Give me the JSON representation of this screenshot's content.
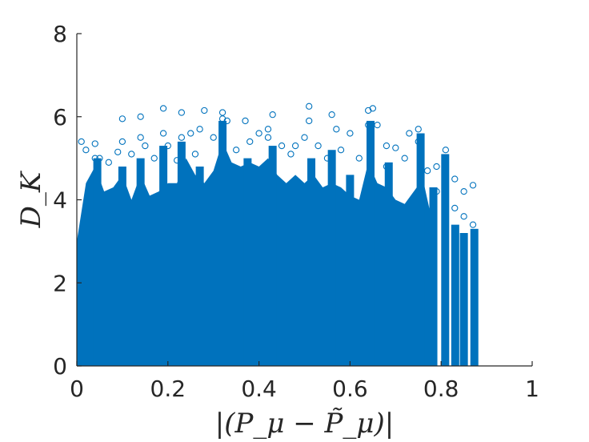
{
  "chart_data": {
    "type": "scatter",
    "marker": "open-circle",
    "series_color": "#0072BD",
    "xlabel": "|(P_μ − P̃_μ)|",
    "ylabel": "D_K",
    "xlim": [
      0,
      1
    ],
    "ylim": [
      0,
      8
    ],
    "xticks": [
      "0",
      "0.2",
      "0.4",
      "0.6",
      "0.8",
      "1"
    ],
    "yticks": [
      "0",
      "2",
      "4",
      "6",
      "8"
    ],
    "grid": false,
    "legend": "none",
    "points": [
      [
        0.01,
        5.4
      ],
      [
        0.02,
        5.2
      ],
      [
        0.04,
        5.35
      ],
      [
        0.05,
        5.0
      ],
      [
        0.07,
        4.9
      ],
      [
        0.09,
        5.15
      ],
      [
        0.1,
        5.95
      ],
      [
        0.12,
        5.1
      ],
      [
        0.14,
        6.0
      ],
      [
        0.15,
        5.3
      ],
      [
        0.17,
        5.0
      ],
      [
        0.19,
        6.2
      ],
      [
        0.2,
        5.3
      ],
      [
        0.22,
        4.95
      ],
      [
        0.23,
        6.1
      ],
      [
        0.25,
        5.6
      ],
      [
        0.27,
        5.7
      ],
      [
        0.28,
        6.15
      ],
      [
        0.3,
        5.5
      ],
      [
        0.32,
        6.1
      ],
      [
        0.33,
        5.9
      ],
      [
        0.35,
        5.2
      ],
      [
        0.37,
        5.9
      ],
      [
        0.38,
        5.4
      ],
      [
        0.4,
        5.6
      ],
      [
        0.42,
        5.5
      ],
      [
        0.43,
        6.05
      ],
      [
        0.45,
        5.3
      ],
      [
        0.47,
        5.1
      ],
      [
        0.48,
        5.3
      ],
      [
        0.5,
        5.5
      ],
      [
        0.51,
        6.25
      ],
      [
        0.53,
        5.3
      ],
      [
        0.55,
        5.0
      ],
      [
        0.56,
        6.05
      ],
      [
        0.58,
        5.2
      ],
      [
        0.6,
        5.6
      ],
      [
        0.62,
        5.0
      ],
      [
        0.64,
        6.15
      ],
      [
        0.65,
        6.2
      ],
      [
        0.66,
        5.8
      ],
      [
        0.68,
        5.3
      ],
      [
        0.7,
        5.25
      ],
      [
        0.72,
        5.0
      ],
      [
        0.73,
        5.6
      ],
      [
        0.75,
        5.7
      ],
      [
        0.77,
        4.7
      ],
      [
        0.79,
        4.8
      ],
      [
        0.81,
        5.2
      ],
      [
        0.83,
        4.5
      ],
      [
        0.85,
        4.2
      ],
      [
        0.87,
        4.35
      ],
      [
        0.87,
        3.4
      ],
      [
        0.85,
        3.6
      ],
      [
        0.83,
        3.8
      ],
      [
        0.81,
        4.9
      ],
      [
        0.79,
        4.2
      ],
      [
        0.75,
        5.4
      ],
      [
        0.64,
        5.8
      ],
      [
        0.51,
        5.9
      ],
      [
        0.32,
        5.95
      ],
      [
        0.23,
        5.5
      ],
      [
        0.19,
        5.6
      ],
      [
        0.14,
        5.5
      ],
      [
        0.1,
        5.4
      ],
      [
        0.04,
        5.0
      ],
      [
        0.42,
        5.7
      ],
      [
        0.57,
        5.7
      ],
      [
        0.68,
        4.8
      ],
      [
        0.26,
        5.1
      ]
    ],
    "columns": [
      {
        "x": 0.809,
        "top": 5.1
      },
      {
        "x": 0.831,
        "top": 3.4
      },
      {
        "x": 0.85,
        "top": 3.2
      },
      {
        "x": 0.873,
        "top": 3.3
      },
      {
        "x": 0.783,
        "top": 4.3
      },
      {
        "x": 0.755,
        "top": 5.6
      },
      {
        "x": 0.645,
        "top": 5.9
      },
      {
        "x": 0.6,
        "top": 4.6
      },
      {
        "x": 0.515,
        "top": 5.0
      },
      {
        "x": 0.43,
        "top": 5.3
      },
      {
        "x": 0.32,
        "top": 5.9
      },
      {
        "x": 0.23,
        "top": 5.4
      },
      {
        "x": 0.19,
        "top": 5.3
      },
      {
        "x": 0.14,
        "top": 5.0
      },
      {
        "x": 0.1,
        "top": 4.8
      },
      {
        "x": 0.045,
        "top": 5.0
      },
      {
        "x": 0.375,
        "top": 5.0
      },
      {
        "x": 0.56,
        "top": 5.2
      },
      {
        "x": 0.685,
        "top": 4.9
      },
      {
        "x": 0.27,
        "top": 4.8
      }
    ],
    "envelope": [
      [
        0.0,
        3.0
      ],
      [
        0.02,
        4.4
      ],
      [
        0.04,
        4.8
      ],
      [
        0.06,
        4.2
      ],
      [
        0.08,
        4.3
      ],
      [
        0.1,
        4.6
      ],
      [
        0.12,
        4.0
      ],
      [
        0.14,
        4.6
      ],
      [
        0.16,
        4.1
      ],
      [
        0.18,
        4.2
      ],
      [
        0.2,
        4.4
      ],
      [
        0.22,
        4.4
      ],
      [
        0.24,
        5.0
      ],
      [
        0.26,
        4.6
      ],
      [
        0.28,
        4.4
      ],
      [
        0.3,
        4.7
      ],
      [
        0.32,
        5.4
      ],
      [
        0.34,
        4.9
      ],
      [
        0.36,
        4.8
      ],
      [
        0.38,
        4.9
      ],
      [
        0.4,
        4.8
      ],
      [
        0.42,
        5.0
      ],
      [
        0.44,
        4.6
      ],
      [
        0.46,
        4.4
      ],
      [
        0.48,
        4.6
      ],
      [
        0.5,
        4.4
      ],
      [
        0.52,
        4.6
      ],
      [
        0.54,
        4.3
      ],
      [
        0.56,
        4.4
      ],
      [
        0.58,
        4.3
      ],
      [
        0.6,
        4.1
      ],
      [
        0.62,
        4.0
      ],
      [
        0.64,
        4.9
      ],
      [
        0.66,
        4.4
      ],
      [
        0.68,
        4.3
      ],
      [
        0.7,
        4.0
      ],
      [
        0.72,
        3.9
      ],
      [
        0.74,
        4.2
      ],
      [
        0.76,
        4.5
      ],
      [
        0.78,
        3.5
      ],
      [
        0.79,
        0.0
      ]
    ]
  }
}
